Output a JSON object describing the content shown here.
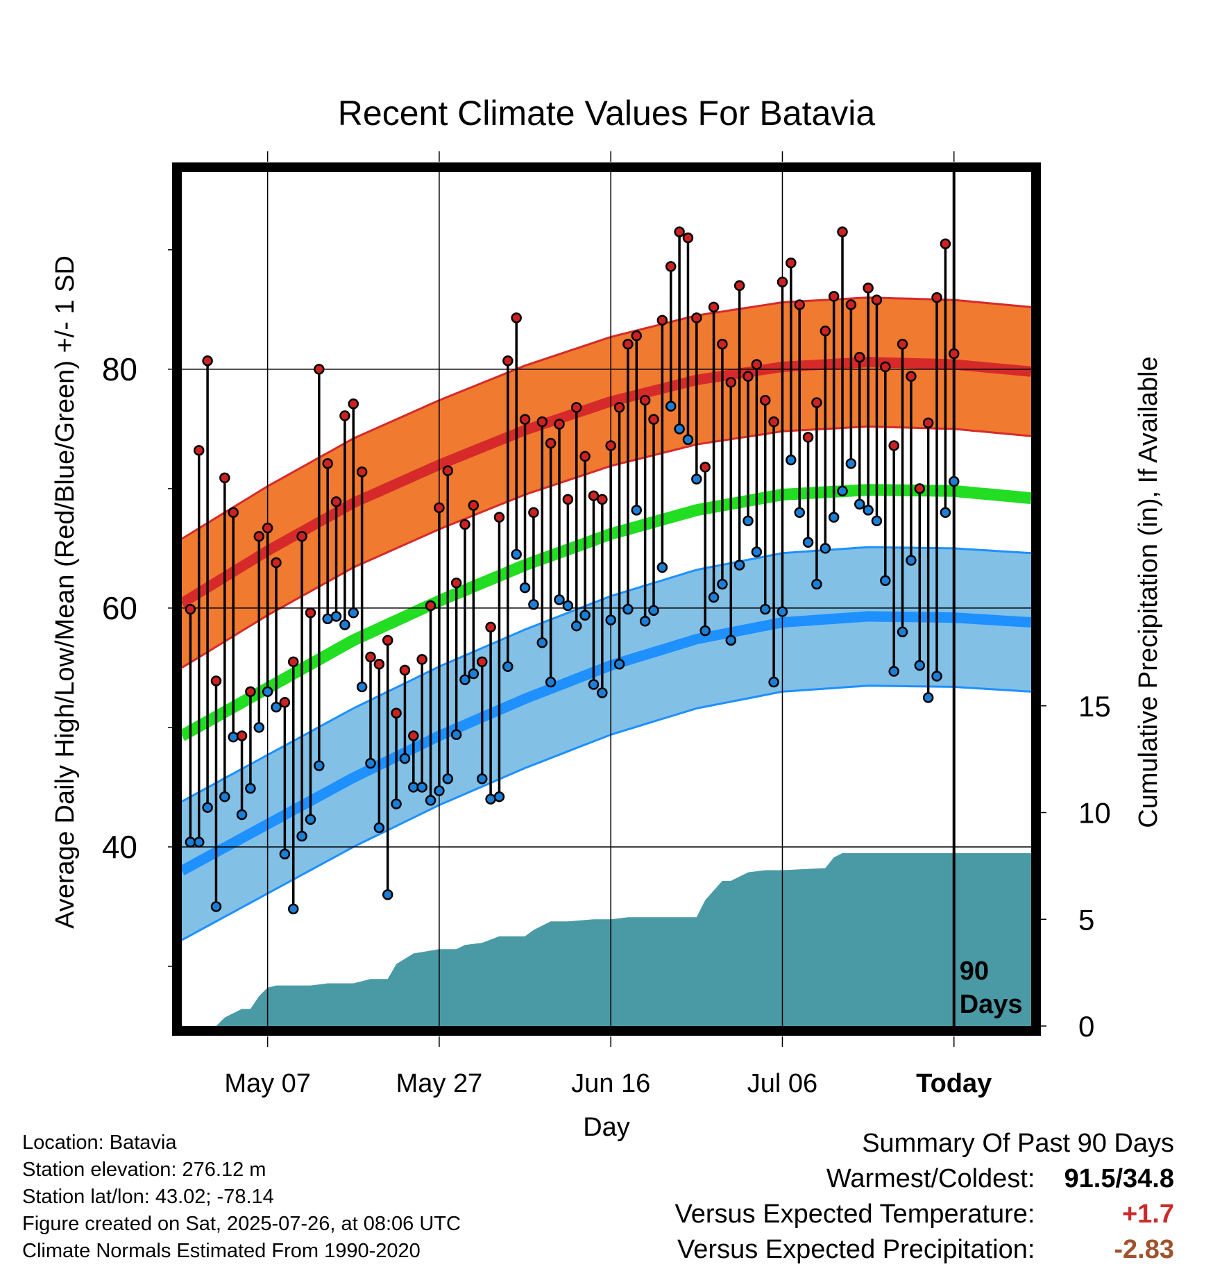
{
  "chart_data": {
    "type": "line",
    "title": "Recent Climate Values For Batavia",
    "xlabel": "Day",
    "ylabel": "Average Daily High/Low/Mean (Red/Blue/Green) +/- 1 SD",
    "y2label": "Cumulative Precipitation (in), If Available",
    "x_range_days": [
      -90,
      9
    ],
    "ylim": [
      25,
      96.5
    ],
    "y2lim": [
      0,
      40
    ],
    "x_ticks": [
      {
        "day": -80,
        "label": "May 07"
      },
      {
        "day": -60,
        "label": "May 27"
      },
      {
        "day": -40,
        "label": "Jun 16"
      },
      {
        "day": -20,
        "label": "Jul 06"
      },
      {
        "day": 0,
        "label": "Today"
      }
    ],
    "y_ticks": [
      40,
      60,
      80
    ],
    "y2_ticks": [
      0,
      5,
      10,
      15
    ],
    "today_annotation": "90\nDays",
    "normals_days": [
      -90,
      -80,
      -70,
      -60,
      -50,
      -40,
      -30,
      -20,
      -10,
      0,
      9
    ],
    "normal_high": [
      60.4,
      64.8,
      68.8,
      72.0,
      74.9,
      77.3,
      79.1,
      80.2,
      80.6,
      80.4,
      79.8
    ],
    "normal_high_sd": 5.4,
    "normal_low": [
      38.0,
      41.9,
      45.8,
      49.3,
      52.4,
      55.2,
      57.4,
      58.8,
      59.3,
      59.2,
      58.8
    ],
    "normal_low_sd": 5.8,
    "normal_mean": [
      49.3,
      53.3,
      57.3,
      60.6,
      63.6,
      66.2,
      68.2,
      69.5,
      69.9,
      69.8,
      69.2
    ],
    "daily_high": [
      59.9,
      73.2,
      80.7,
      53.9,
      70.9,
      68.0,
      49.3,
      53.0,
      66.0,
      66.7,
      63.8,
      52.1,
      55.5,
      66.0,
      59.6,
      80.0,
      72.1,
      68.9,
      76.1,
      77.1,
      71.4,
      55.9,
      55.3,
      57.3,
      51.2,
      54.8,
      49.3,
      55.7,
      60.2,
      68.4,
      71.5,
      62.1,
      67.0,
      68.6,
      55.5,
      58.4,
      67.6,
      80.7,
      84.3,
      75.8,
      68.0,
      75.6,
      73.8,
      75.4,
      69.1,
      76.8,
      72.7,
      69.4,
      69.1,
      73.6,
      76.8,
      82.1,
      82.8,
      77.4,
      75.8,
      84.1,
      88.6,
      91.5,
      91.0,
      84.3,
      71.8,
      85.2,
      82.1,
      78.9,
      87.0,
      79.4,
      80.4,
      77.4,
      75.6,
      87.3,
      88.9,
      85.4,
      74.3,
      77.2,
      83.2,
      86.1,
      91.5,
      85.4,
      81.0,
      86.8,
      85.8,
      80.2,
      73.6,
      82.1,
      79.4,
      70.0,
      75.5,
      86.0,
      90.5,
      81.3
    ],
    "daily_low": [
      40.4,
      40.4,
      43.3,
      35.0,
      44.2,
      49.2,
      42.7,
      44.9,
      50.0,
      53.0,
      51.7,
      39.4,
      34.8,
      40.9,
      42.3,
      46.8,
      59.1,
      59.3,
      58.6,
      59.6,
      53.4,
      47.0,
      41.6,
      36.0,
      43.6,
      47.4,
      45.0,
      45.0,
      43.9,
      44.7,
      45.7,
      49.4,
      54.0,
      54.5,
      45.7,
      44.0,
      44.2,
      55.1,
      64.5,
      61.7,
      60.3,
      57.1,
      53.8,
      60.7,
      60.2,
      58.5,
      59.4,
      53.6,
      52.9,
      59.0,
      55.3,
      59.9,
      68.2,
      58.9,
      59.8,
      63.4,
      76.9,
      75.0,
      74.1,
      70.8,
      58.1,
      60.9,
      62.0,
      57.3,
      63.6,
      67.3,
      64.7,
      59.9,
      53.8,
      59.7,
      72.4,
      68.0,
      65.5,
      62.0,
      65.0,
      67.6,
      69.8,
      72.1,
      68.7,
      68.2,
      67.3,
      62.3,
      54.7,
      58.0,
      64.0,
      55.2,
      52.5,
      54.3,
      68.0,
      70.6
    ],
    "cumulative_precip_days": [
      -90,
      -86,
      -85,
      -84,
      -83,
      -82,
      -81,
      -80,
      -79,
      -75,
      -73,
      -70,
      -68,
      -66,
      -65,
      -63,
      -60,
      -58,
      -57,
      -55,
      -53,
      -50,
      -49,
      -47,
      -45,
      -42,
      -40,
      -38,
      -36,
      -33,
      -30,
      -29,
      -27,
      -26,
      -24,
      -22,
      -20,
      -15,
      -14,
      -13,
      -5,
      0,
      9
    ],
    "cumulative_precip": [
      0.0,
      0.0,
      0.4,
      0.6,
      0.8,
      0.8,
      1.4,
      1.8,
      1.9,
      1.9,
      2.0,
      2.0,
      2.2,
      2.2,
      2.9,
      3.4,
      3.6,
      3.6,
      3.8,
      3.9,
      4.2,
      4.2,
      4.5,
      4.9,
      4.9,
      5.0,
      5.0,
      5.1,
      5.1,
      5.1,
      5.1,
      5.9,
      6.8,
      6.8,
      7.2,
      7.3,
      7.3,
      7.4,
      7.9,
      8.1,
      8.1,
      8.1,
      8.1
    ]
  },
  "info": {
    "location": "Location: Batavia",
    "elevation": "Station elevation: 276.12 m",
    "latlon": "Station lat/lon: 43.02; -78.14",
    "created": "Figure created on Sat, 2025-07-26, at 08:06 UTC",
    "normals": "Climate Normals Estimated From 1990-2020"
  },
  "summary": {
    "title": "Summary Of Past 90 Days",
    "warmest_coldest_label": "Warmest/Coldest:",
    "warmest_coldest_value": "91.5/34.8",
    "temp_label": "Versus Expected Temperature:",
    "temp_value": "+1.7",
    "precip_label": "Versus Expected Precipitation:",
    "precip_value": "-2.83"
  },
  "colors": {
    "high_band": "#f07a30",
    "high_line": "#d62a2a",
    "low_band": "#82c0e6",
    "low_line": "#1e90ff",
    "mean_line": "#22dd22",
    "precip": "#4a9aa6",
    "high_marker": "#cc2222",
    "low_marker": "#1c7fd6"
  }
}
